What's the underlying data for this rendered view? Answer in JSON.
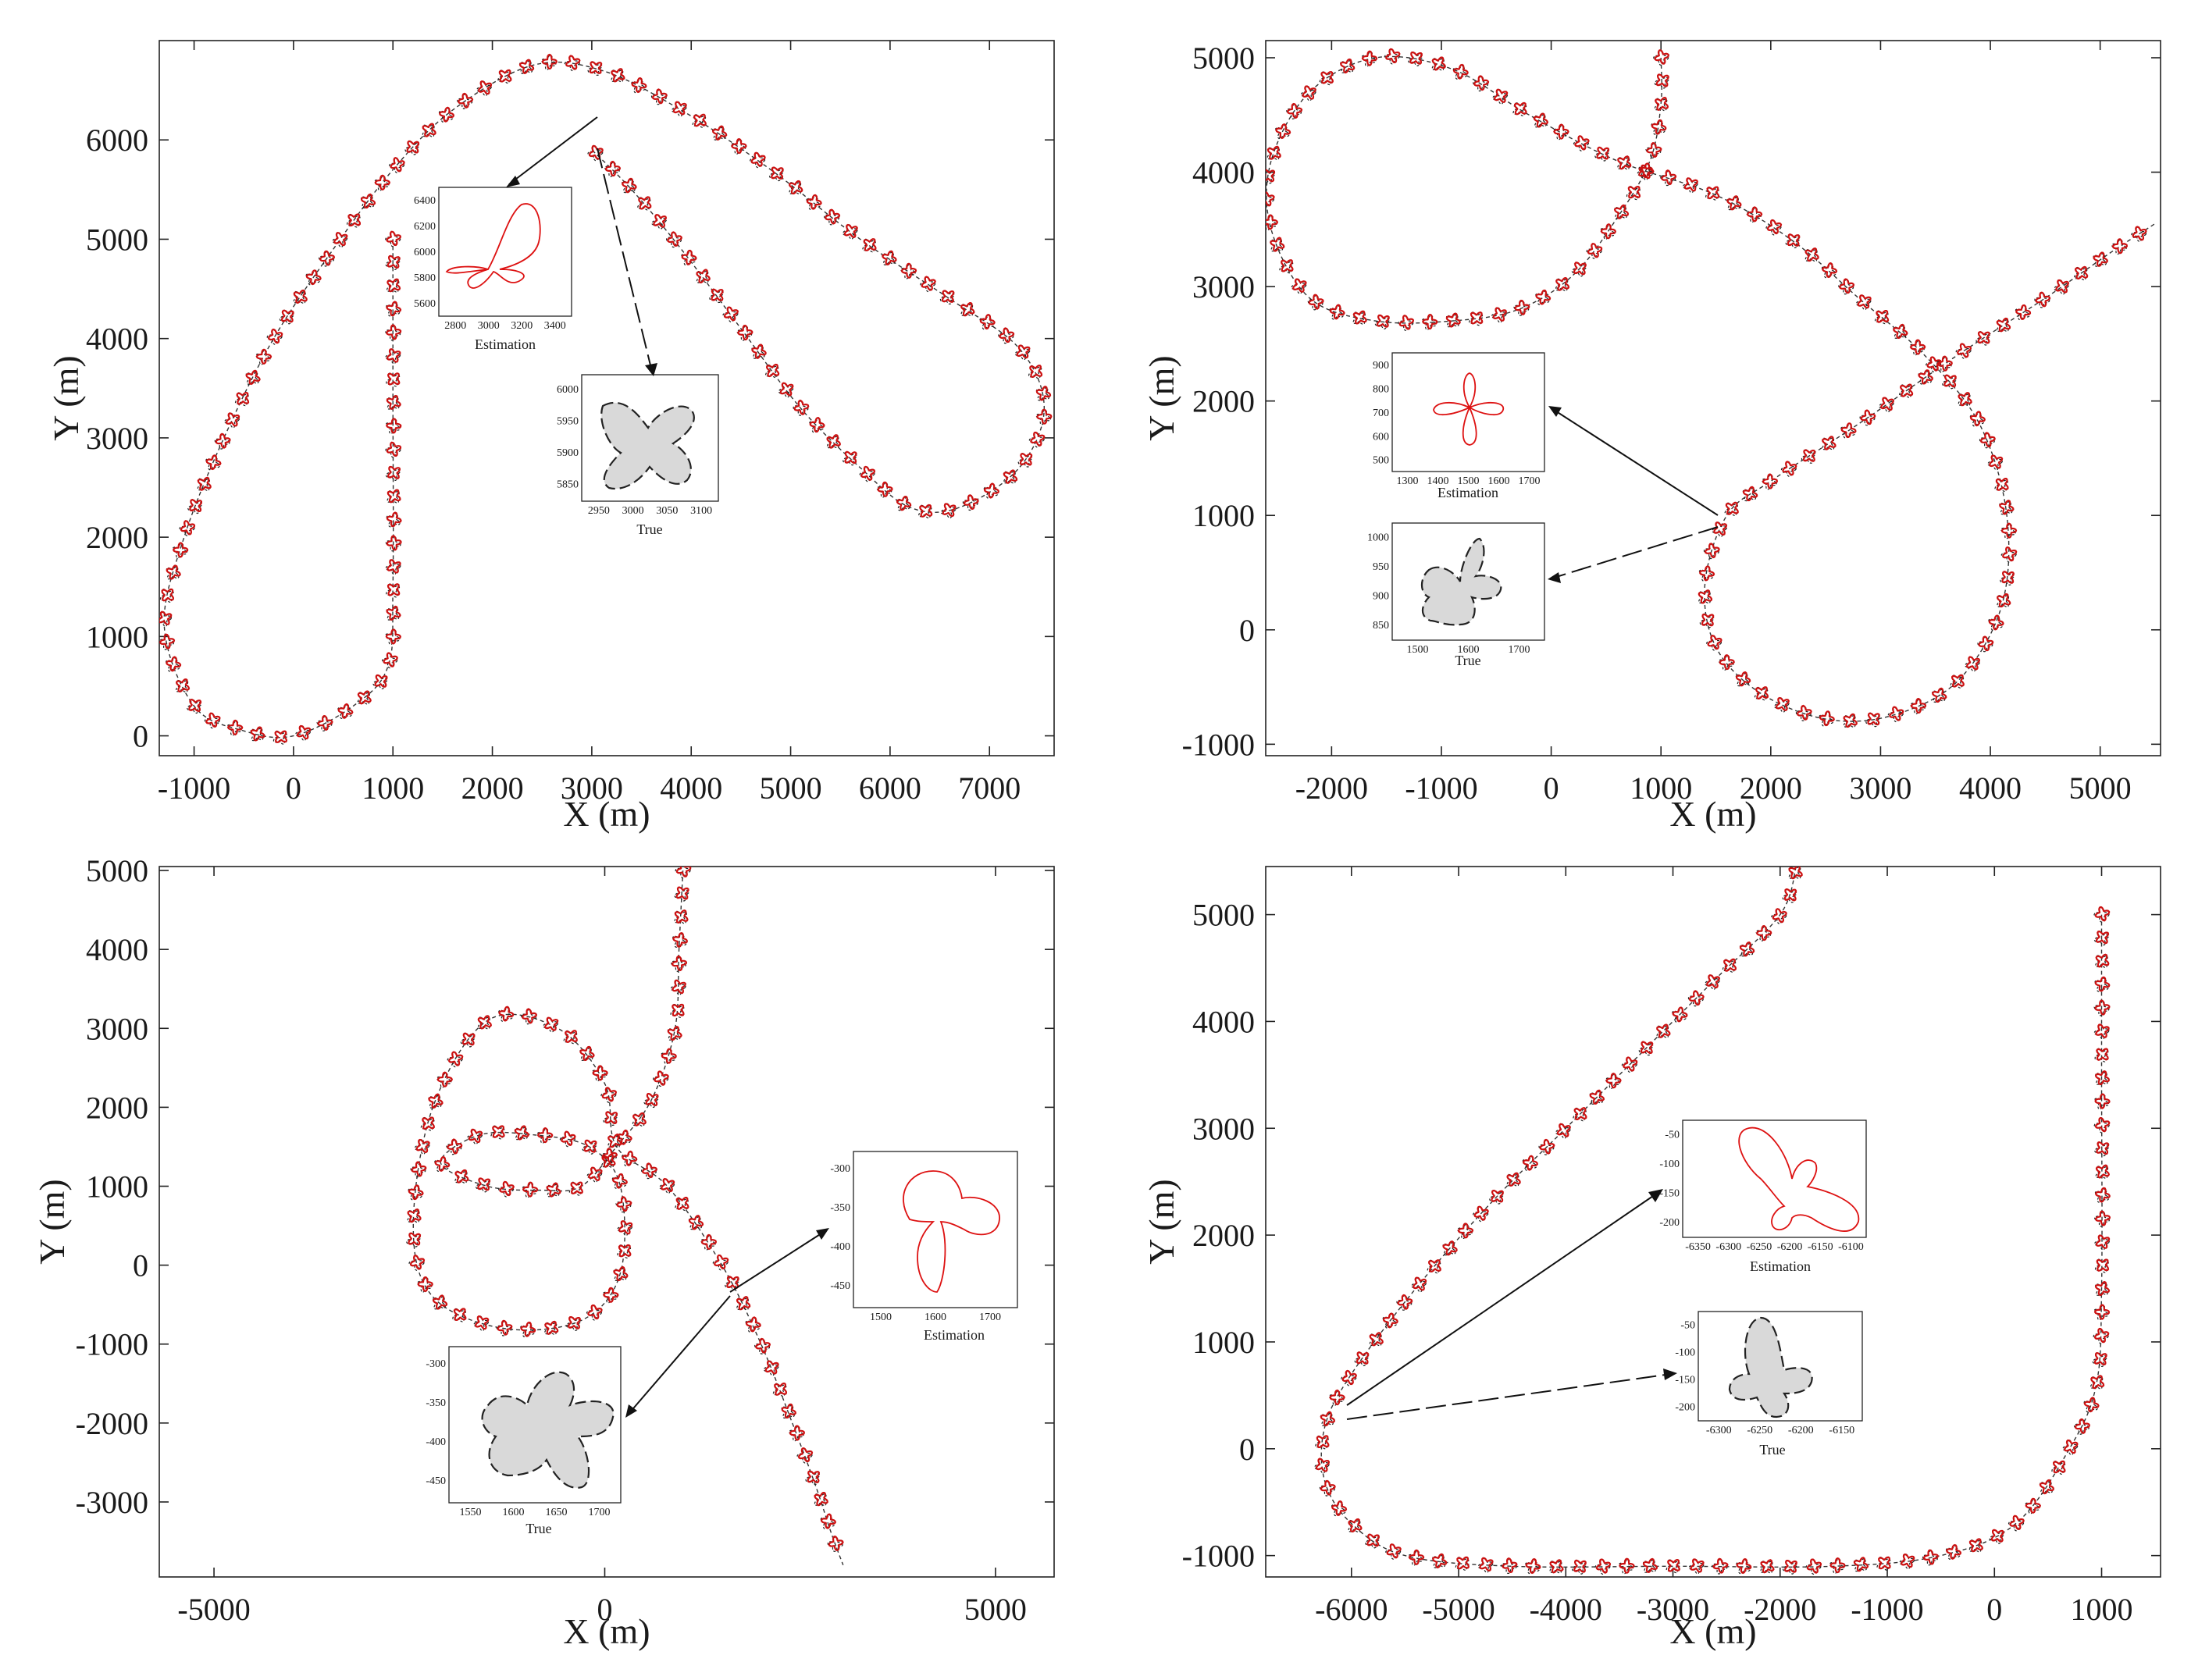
{
  "chart_data": [
    {
      "type": "scatter",
      "panel": "top-left",
      "xlabel": "X (m)",
      "ylabel": "Y (m)",
      "xlim": [
        -1350,
        7650
      ],
      "ylim": [
        -200,
        7000
      ],
      "xticks": [
        -1000,
        0,
        1000,
        2000,
        3000,
        4000,
        5000,
        6000,
        7000
      ],
      "yticks": [
        0,
        1000,
        2000,
        3000,
        4000,
        5000,
        6000
      ],
      "trajectory": [
        [
          1000,
          5000
        ],
        [
          1000,
          3500
        ],
        [
          1000,
          1500
        ],
        [
          950,
          700
        ],
        [
          600,
          300
        ],
        [
          0,
          0
        ],
        [
          -500,
          50
        ],
        [
          -1000,
          300
        ],
        [
          -1300,
          1100
        ],
        [
          -1100,
          2000
        ],
        [
          -700,
          3000
        ],
        [
          -200,
          4000
        ],
        [
          400,
          4900
        ],
        [
          1000,
          5700
        ],
        [
          1600,
          6300
        ],
        [
          2400,
          6750
        ],
        [
          3100,
          6700
        ],
        [
          3900,
          6300
        ],
        [
          4800,
          5700
        ],
        [
          5700,
          5000
        ],
        [
          6600,
          4400
        ],
        [
          7300,
          3900
        ],
        [
          7550,
          3300
        ],
        [
          7300,
          2700
        ],
        [
          6700,
          2300
        ],
        [
          6200,
          2300
        ],
        [
          5700,
          2700
        ],
        [
          5100,
          3300
        ],
        [
          4500,
          4100
        ],
        [
          3900,
          4900
        ],
        [
          3400,
          5500
        ],
        [
          3000,
          5900
        ]
      ],
      "insets": [
        {
          "label": "Estimation",
          "xticks": [
            "2800",
            "3000",
            "3200",
            "3400"
          ],
          "yticks": [
            "6400",
            "6200",
            "6000",
            "5800",
            "5600"
          ]
        },
        {
          "label": "True",
          "xticks": [
            "2950",
            "3000",
            "3050",
            "3100"
          ],
          "yticks": [
            "6000",
            "5950",
            "5900",
            "5850"
          ]
        }
      ]
    },
    {
      "type": "scatter",
      "panel": "top-right",
      "xlabel": "X (m)",
      "ylabel": "Y (m)",
      "xlim": [
        -2600,
        5550
      ],
      "ylim": [
        -1100,
        5150
      ],
      "xticks": [
        -2000,
        -1000,
        0,
        1000,
        2000,
        3000,
        4000,
        5000
      ],
      "yticks": [
        -1000,
        0,
        1000,
        2000,
        3000,
        4000,
        5000
      ],
      "trajectory": [
        [
          1000,
          5000
        ],
        [
          1000,
          4600
        ],
        [
          900,
          4100
        ],
        [
          600,
          3600
        ],
        [
          200,
          3100
        ],
        [
          -300,
          2800
        ],
        [
          -900,
          2700
        ],
        [
          -1600,
          2700
        ],
        [
          -2200,
          2900
        ],
        [
          -2550,
          3500
        ],
        [
          -2550,
          4100
        ],
        [
          -2200,
          4700
        ],
        [
          -1600,
          5000
        ],
        [
          -900,
          4900
        ],
        [
          -200,
          4500
        ],
        [
          600,
          4100
        ],
        [
          1500,
          3800
        ],
        [
          2200,
          3400
        ],
        [
          2800,
          2900
        ],
        [
          3400,
          2400
        ],
        [
          3900,
          1800
        ],
        [
          4150,
          1000
        ],
        [
          4100,
          200
        ],
        [
          3700,
          -450
        ],
        [
          3100,
          -750
        ],
        [
          2500,
          -780
        ],
        [
          1900,
          -550
        ],
        [
          1500,
          -150
        ],
        [
          1400,
          400
        ],
        [
          1600,
          1000
        ],
        [
          2000,
          1300
        ],
        [
          2800,
          1800
        ],
        [
          3700,
          2400
        ],
        [
          4500,
          2900
        ],
        [
          5100,
          3300
        ],
        [
          5500,
          3550
        ]
      ],
      "insets": [
        {
          "label": "Estimation",
          "xticks": [
            "1300",
            "1400",
            "1500",
            "1600",
            "1700"
          ],
          "yticks": [
            "900",
            "800",
            "700",
            "600",
            "500"
          ]
        },
        {
          "label": "True",
          "xticks": [
            "1500",
            "1600",
            "1700"
          ],
          "yticks": [
            "1000",
            "950",
            "900",
            "850"
          ]
        }
      ]
    },
    {
      "type": "scatter",
      "panel": "bottom-left",
      "xlabel": "X (m)",
      "ylabel": "Y (m)",
      "xlim": [
        -5700,
        5750
      ],
      "ylim": [
        -3950,
        5050
      ],
      "xticks": [
        -5000,
        0,
        5000
      ],
      "yticks": [
        -3000,
        -2000,
        -1000,
        0,
        1000,
        2000,
        3000,
        4000,
        5000
      ],
      "trajectory": [
        [
          1000,
          5000
        ],
        [
          950,
          4000
        ],
        [
          900,
          3000
        ],
        [
          600,
          2100
        ],
        [
          150,
          1500
        ],
        [
          -300,
          1000
        ],
        [
          -800,
          950
        ],
        [
          -1500,
          1000
        ],
        [
          -2100,
          1300
        ],
        [
          -1600,
          1650
        ],
        [
          -900,
          1650
        ],
        [
          -200,
          1500
        ],
        [
          200,
          1000
        ],
        [
          200,
          -100
        ],
        [
          -300,
          -700
        ],
        [
          -1300,
          -800
        ],
        [
          -2200,
          -400
        ],
        [
          -2450,
          500
        ],
        [
          -2200,
          2000
        ],
        [
          -1500,
          3100
        ],
        [
          -600,
          3000
        ],
        [
          0,
          2300
        ],
        [
          150,
          1500
        ],
        [
          800,
          1000
        ],
        [
          1500,
          0
        ],
        [
          2000,
          -1000
        ],
        [
          2400,
          -2000
        ],
        [
          2700,
          -2800
        ],
        [
          2900,
          -3400
        ],
        [
          3050,
          -3800
        ]
      ],
      "insets": [
        {
          "label": "Estimation",
          "xticks": [
            "1500",
            "1600",
            "1700"
          ],
          "yticks": [
            "-300",
            "-350",
            "-400",
            "-450"
          ]
        },
        {
          "label": "True",
          "xticks": [
            "1550",
            "1600",
            "1650",
            "1700"
          ],
          "yticks": [
            "-300",
            "-350",
            "-400",
            "-450"
          ]
        }
      ]
    },
    {
      "type": "scatter",
      "panel": "bottom-right",
      "xlabel": "X (m)",
      "ylabel": "Y (m)",
      "xlim": [
        -6800,
        1550
      ],
      "ylim": [
        -1200,
        5450
      ],
      "xticks": [
        -6000,
        -5000,
        -4000,
        -3000,
        -2000,
        -1000,
        0,
        1000
      ],
      "yticks": [
        -1000,
        0,
        1000,
        2000,
        3000,
        4000,
        5000
      ],
      "trajectory": [
        [
          1000,
          5000
        ],
        [
          1000,
          3500
        ],
        [
          1000,
          1500
        ],
        [
          950,
          600
        ],
        [
          700,
          0
        ],
        [
          200,
          -700
        ],
        [
          -500,
          -1000
        ],
        [
          -1500,
          -1100
        ],
        [
          -3000,
          -1100
        ],
        [
          -4500,
          -1100
        ],
        [
          -5500,
          -1000
        ],
        [
          -6000,
          -700
        ],
        [
          -6250,
          -300
        ],
        [
          -6250,
          200
        ],
        [
          -6000,
          700
        ],
        [
          -5400,
          1500
        ],
        [
          -4700,
          2300
        ],
        [
          -4000,
          3000
        ],
        [
          -3300,
          3700
        ],
        [
          -2600,
          4400
        ],
        [
          -2000,
          5000
        ],
        [
          -1850,
          5450
        ]
      ],
      "insets": [
        {
          "label": "Estimation",
          "xticks": [
            "-6350",
            "-6300",
            "-6250",
            "-6200",
            "-6150",
            "-6100"
          ],
          "yticks": [
            "-50",
            "-100",
            "-150",
            "-200"
          ]
        },
        {
          "label": "True",
          "xticks": [
            "-6300",
            "-6250",
            "-6200",
            "-6150"
          ],
          "yticks": [
            "-50",
            "-100",
            "-150",
            "-200"
          ]
        }
      ]
    }
  ]
}
